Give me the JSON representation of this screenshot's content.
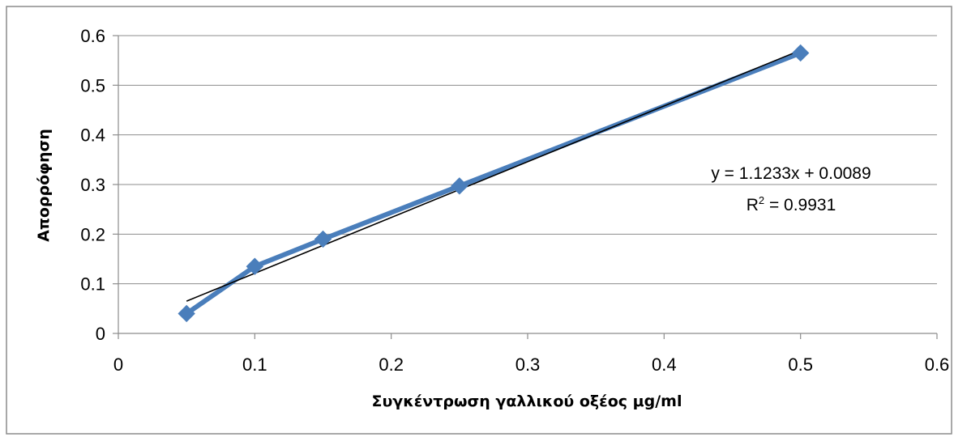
{
  "chart_data": {
    "type": "scatter",
    "title": "",
    "xlabel": "Συγκέντρωση γαλλικού οξέος μg/ml",
    "ylabel": "Απορρόφηση",
    "xlim": [
      0,
      0.6
    ],
    "ylim": [
      0,
      0.6
    ],
    "x_ticks": [
      0,
      0.1,
      0.2,
      0.3,
      0.4,
      0.5,
      0.6
    ],
    "y_ticks": [
      0,
      0.1,
      0.2,
      0.3,
      0.4,
      0.5,
      0.6
    ],
    "x_tick_labels": [
      "0",
      "0.1",
      "0.2",
      "0.3",
      "0.4",
      "0.5",
      "0.6"
    ],
    "y_tick_labels": [
      "0",
      "0.1",
      "0.2",
      "0.3",
      "0.4",
      "0.5",
      "0.6"
    ],
    "grid": "horizontal",
    "legend": "none",
    "series": [
      {
        "x": [
          0.05,
          0.1,
          0.15,
          0.25,
          0.5
        ],
        "y": [
          0.04,
          0.135,
          0.19,
          0.297,
          0.565
        ],
        "color": "#4a7ebb",
        "marker": "diamond",
        "connected": true
      }
    ],
    "trendline": {
      "slope": 1.1233,
      "intercept": 0.0089,
      "x_range": [
        0.05,
        0.5
      ],
      "color": "#000000"
    },
    "annotation": {
      "equation": "y = 1.1233x + 0.0089",
      "r2_label": "R",
      "r2_sup": "2",
      "r2_value": " = 0.9931"
    }
  }
}
